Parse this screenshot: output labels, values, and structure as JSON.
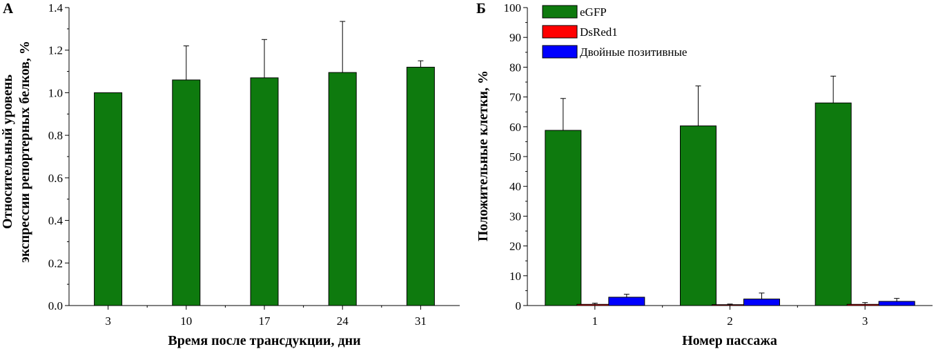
{
  "chart_data": [
    {
      "type": "bar",
      "panel_label": "А",
      "categories": [
        "3",
        "10",
        "17",
        "24",
        "31"
      ],
      "series": [
        {
          "values": [
            1.0,
            1.06,
            1.07,
            1.095,
            1.12
          ],
          "errors": [
            0,
            0.16,
            0.18,
            0.24,
            0.03
          ],
          "color": "#0e7a0e"
        }
      ],
      "xlabel": "Время после трансдукции, дни",
      "ylabel_lines": [
        "Относительный уровень",
        "экспрессии репортерных белков, %"
      ],
      "ylim": [
        0,
        1.4
      ],
      "yticks": [
        "0.0",
        "0.2",
        "0.4",
        "0.6",
        "0.8",
        "1.0",
        "1.2",
        "1.4"
      ],
      "grid": false
    },
    {
      "type": "bar",
      "panel_label": "Б",
      "categories": [
        "1",
        "2",
        "3"
      ],
      "series": [
        {
          "name": "eGFP",
          "values": [
            58.8,
            60.3,
            68.0
          ],
          "errors": [
            10.7,
            13.4,
            9.0
          ],
          "color": "#0e7a0e"
        },
        {
          "name": "DsRed1",
          "values": [
            0.4,
            0.3,
            0.4
          ],
          "errors": [
            0.4,
            0.2,
            0.6
          ],
          "color": "#ff0000"
        },
        {
          "name": "Двойные позитивные",
          "values": [
            2.8,
            2.2,
            1.4
          ],
          "errors": [
            1.0,
            2.0,
            1.0
          ],
          "color": "#0000ff"
        }
      ],
      "xlabel": "Номер пассажа",
      "ylabel": "Положительные клетки, %",
      "ylim": [
        0,
        100
      ],
      "yticks": [
        "0",
        "10",
        "20",
        "30",
        "40",
        "50",
        "60",
        "70",
        "80",
        "90",
        "100"
      ],
      "legend_position": "top-left",
      "grid": false
    }
  ]
}
